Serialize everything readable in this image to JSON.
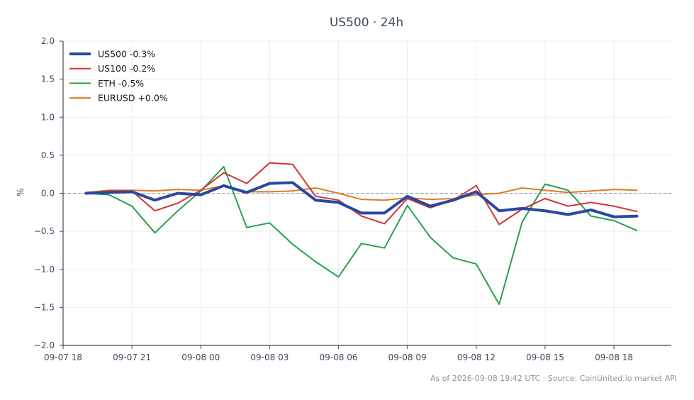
{
  "chart_data": {
    "type": "line",
    "title": "US500 · 24h",
    "xlabel": "",
    "ylabel": "%",
    "ylim": [
      -2.0,
      2.0
    ],
    "yticks": [
      2.0,
      1.5,
      1.0,
      0.5,
      0.0,
      -0.5,
      -1.0,
      -1.5,
      -2.0
    ],
    "ytick_labels": [
      "2.0",
      "1.5",
      "1.0",
      "0.5",
      "0.0",
      "−0.5",
      "−1.0",
      "−1.5",
      "−2.0"
    ],
    "xlim": [
      "2026-09-07 18:00",
      "2026-09-08 20:30"
    ],
    "xticks": [
      "2026-09-07 18:00",
      "2026-09-07 21:00",
      "2026-09-08 00:00",
      "2026-09-08 03:00",
      "2026-09-08 06:00",
      "2026-09-08 09:00",
      "2026-09-08 12:00",
      "2026-09-08 15:00",
      "2026-09-08 18:00"
    ],
    "xtick_labels": [
      "09-07 18",
      "09-07 21",
      "09-08 00",
      "09-08 03",
      "09-08 06",
      "09-08 09",
      "09-08 12",
      "09-08 15",
      "09-08 18"
    ],
    "x": [
      "2026-09-07 19:00",
      "2026-09-07 20:00",
      "2026-09-07 21:00",
      "2026-09-07 22:00",
      "2026-09-07 23:00",
      "2026-09-08 00:00",
      "2026-09-08 01:00",
      "2026-09-08 02:00",
      "2026-09-08 03:00",
      "2026-09-08 04:00",
      "2026-09-08 05:00",
      "2026-09-08 06:00",
      "2026-09-08 07:00",
      "2026-09-08 08:00",
      "2026-09-08 09:00",
      "2026-09-08 10:00",
      "2026-09-08 11:00",
      "2026-09-08 12:00",
      "2026-09-08 13:00",
      "2026-09-08 14:00",
      "2026-09-08 15:00",
      "2026-09-08 16:00",
      "2026-09-08 17:00",
      "2026-09-08 18:00",
      "2026-09-08 19:00"
    ],
    "grid": true,
    "zero_line": true,
    "legend_position": "top-left",
    "series": [
      {
        "name": "US500 -0.3%",
        "color": "#2a47a3",
        "width": "thick",
        "values": [
          0.0,
          0.01,
          0.02,
          -0.09,
          0.0,
          -0.02,
          0.1,
          0.01,
          0.13,
          0.14,
          -0.09,
          -0.12,
          -0.26,
          -0.26,
          -0.04,
          -0.17,
          -0.09,
          0.02,
          -0.23,
          -0.2,
          -0.23,
          -0.28,
          -0.22,
          -0.31,
          -0.3
        ]
      },
      {
        "name": "US100 -0.2%",
        "color": "#cf3434",
        "values": [
          0.0,
          0.03,
          0.03,
          -0.23,
          -0.13,
          0.04,
          0.27,
          0.13,
          0.4,
          0.38,
          -0.04,
          -0.09,
          -0.3,
          -0.4,
          -0.07,
          -0.19,
          -0.09,
          0.1,
          -0.41,
          -0.21,
          -0.07,
          -0.17,
          -0.12,
          -0.17,
          -0.24
        ]
      },
      {
        "name": "ETH -0.5%",
        "color": "#27a04d",
        "values": [
          0.0,
          -0.02,
          -0.17,
          -0.52,
          -0.23,
          0.03,
          0.35,
          -0.45,
          -0.39,
          -0.67,
          -0.9,
          -1.1,
          -0.66,
          -0.72,
          -0.16,
          -0.58,
          -0.85,
          -0.93,
          -1.46,
          -0.38,
          0.12,
          0.04,
          -0.3,
          -0.36,
          -0.49
        ]
      },
      {
        "name": "EURUSD +0.0%",
        "color": "#e07b22",
        "values": [
          0.01,
          0.04,
          0.04,
          0.03,
          0.05,
          0.04,
          0.1,
          0.02,
          0.02,
          0.03,
          0.07,
          0.0,
          -0.08,
          -0.09,
          -0.06,
          -0.08,
          -0.07,
          -0.02,
          0.0,
          0.07,
          0.04,
          0.01,
          0.03,
          0.05,
          0.04
        ]
      }
    ]
  },
  "footer": {
    "note": "As of 2026-09-08 19:42 UTC · Source: CoinUnited.io market API"
  }
}
